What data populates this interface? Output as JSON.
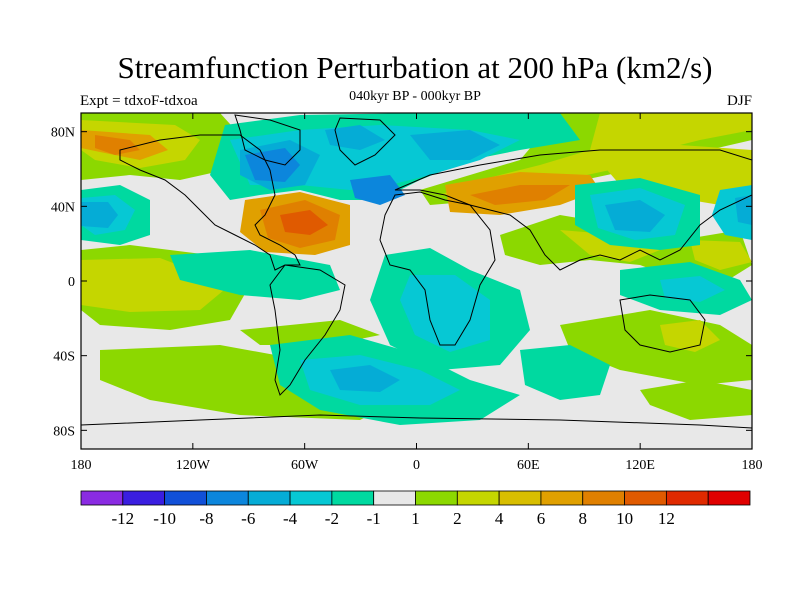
{
  "title": "Streamfunction Perturbation at 200 hPa (km2/s)",
  "subtitle": "040kyr BP - 000kyr BP",
  "expt": "Expt = tdxoF-tdxoa",
  "season": "DJF",
  "map": {
    "lon_range": [
      -180,
      180
    ],
    "lat_range": [
      -90,
      90
    ],
    "lat_ticks": [
      80,
      40,
      0,
      -40,
      -80
    ],
    "lat_tick_labels": [
      "80N",
      "40N",
      "0",
      "40S",
      "80S"
    ],
    "lon_ticks": [
      -180,
      -120,
      -60,
      0,
      60,
      120,
      180
    ],
    "lon_tick_labels": [
      "180",
      "120W",
      "60W",
      "0",
      "60E",
      "120E",
      "180"
    ],
    "background_color": "#e8e8e8"
  },
  "colorbar": {
    "colors": [
      "#8a2be2",
      "#3a1ee0",
      "#1150d8",
      "#0c86dc",
      "#05acd6",
      "#06c8d4",
      "#00d9a0",
      "#e8e8e8",
      "#8cd800",
      "#c5d600",
      "#d8be00",
      "#e0a000",
      "#e08000",
      "#e05a00",
      "#e02a00",
      "#e00000"
    ],
    "labels": [
      "-12",
      "-10",
      "-8",
      "-6",
      "-4",
      "-2",
      "-1",
      "1",
      "2",
      "4",
      "6",
      "8",
      "10",
      "12"
    ]
  }
}
